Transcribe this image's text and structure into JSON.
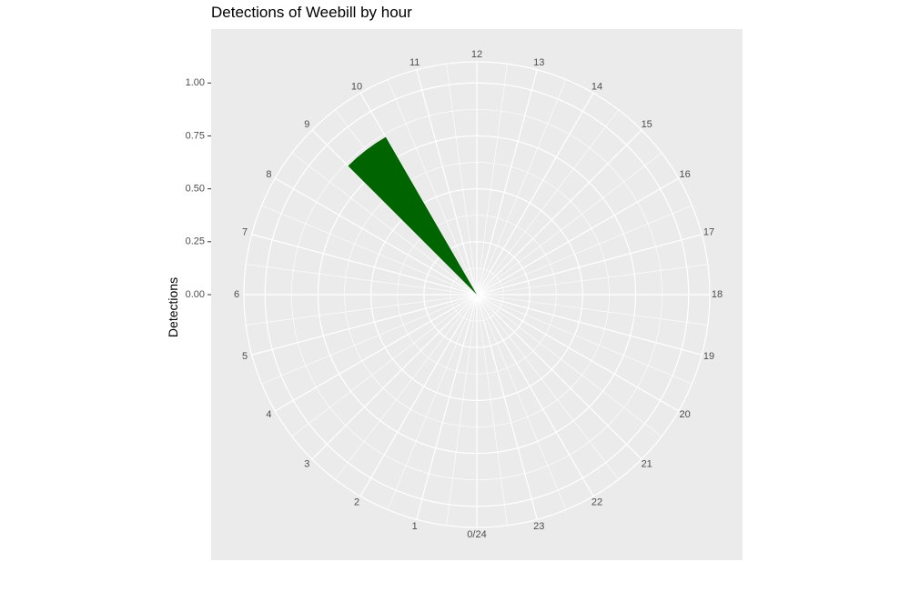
{
  "chart_data": {
    "type": "polar-bar",
    "title": "Detections of Weebill by hour",
    "ylabel": "Detections",
    "xlabel": "",
    "y_ticks": [
      "0.00",
      "0.25",
      "0.50",
      "0.75",
      "1.00"
    ],
    "y_tick_values": [
      0,
      0.25,
      0.5,
      0.75,
      1.0
    ],
    "ylim": [
      0,
      1.1
    ],
    "hour_labels": [
      "0/24",
      "1",
      "2",
      "3",
      "4",
      "5",
      "6",
      "7",
      "8",
      "9",
      "10",
      "11",
      "12",
      "13",
      "14",
      "15",
      "16",
      "17",
      "18",
      "19",
      "20",
      "21",
      "22",
      "23"
    ],
    "x": [
      9.5
    ],
    "values": [
      0.86
    ],
    "bar_width_hours": 1,
    "bar_color": "#006400",
    "panel_background": "#EBEBEB",
    "grid_color": "#FFFFFF"
  }
}
